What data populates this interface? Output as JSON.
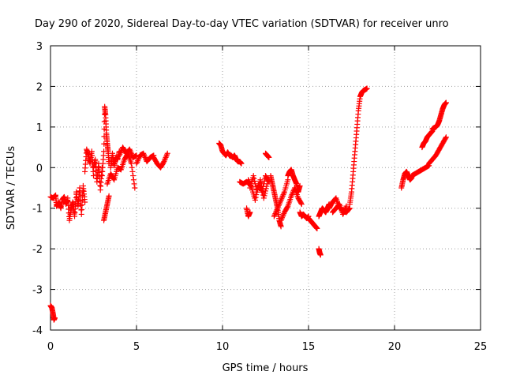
{
  "chart_data": {
    "type": "scatter",
    "title": "Day 290 of 2020, Sidereal Day-to-day VTEC variation (SDTVAR) for receiver unro",
    "xlabel": "GPS time / hours",
    "ylabel": "SDTVAR / TECUs",
    "xlim": [
      0,
      25
    ],
    "ylim": [
      -4,
      3
    ],
    "xticks": [
      "0",
      "5",
      "10",
      "15",
      "20",
      "25"
    ],
    "yticks": [
      "-4",
      "-3",
      "-2",
      "-1",
      "0",
      "1",
      "2",
      "3"
    ],
    "grid": true,
    "marker": "plus",
    "color": "#ff0000",
    "series": [
      {
        "name": "SDTVAR",
        "segments": [
          {
            "x": [
              0.0,
              0.08,
              0.15,
              0.2,
              0.25
            ],
            "y": [
              -3.4,
              -3.45,
              -3.6,
              -3.75,
              -3.7
            ]
          },
          {
            "x": [
              0.0,
              0.15,
              0.3,
              0.35,
              0.5,
              0.6,
              0.7,
              0.8,
              0.9,
              1.0
            ],
            "y": [
              -0.72,
              -0.75,
              -0.68,
              -0.95,
              -0.85,
              -1.0,
              -0.78,
              -0.72,
              -0.9,
              -0.8
            ]
          },
          {
            "x": [
              1.0,
              1.1,
              1.2,
              1.3,
              1.4,
              1.5
            ],
            "y": [
              -0.75,
              -1.3,
              -1.0,
              -0.85,
              -1.2,
              -0.65
            ]
          },
          {
            "x": [
              1.5,
              1.6,
              1.7,
              1.8,
              1.9,
              2.0
            ],
            "y": [
              -0.6,
              -0.95,
              -0.5,
              -1.15,
              -0.45,
              -0.85
            ]
          },
          {
            "x": [
              2.0,
              2.1,
              2.2,
              2.3,
              2.4,
              2.5
            ],
            "y": [
              -0.1,
              0.45,
              0.3,
              0.1,
              0.4,
              -0.2
            ]
          },
          {
            "x": [
              2.5,
              2.6,
              2.7,
              2.8,
              2.9,
              3.0
            ],
            "y": [
              0.0,
              0.2,
              -0.35,
              0.1,
              -0.55,
              0.0
            ]
          },
          {
            "x": [
              3.0,
              3.1,
              3.15,
              3.2,
              3.25,
              3.3,
              3.35,
              3.4
            ],
            "y": [
              -0.2,
              0.4,
              1.5,
              1.3,
              0.85,
              0.6,
              0.4,
              0.1
            ]
          },
          {
            "x": [
              3.1,
              3.2,
              3.3,
              3.4
            ],
            "y": [
              -1.3,
              -1.1,
              -0.9,
              -0.7
            ]
          },
          {
            "x": [
              3.5,
              3.6,
              3.7,
              3.8,
              3.9,
              4.0
            ],
            "y": [
              0.0,
              0.35,
              0.05,
              0.25,
              0.2,
              0.4
            ]
          },
          {
            "x": [
              3.3,
              3.5,
              3.7,
              3.9,
              4.1,
              4.3,
              4.5,
              4.7,
              4.9
            ],
            "y": [
              -0.4,
              -0.15,
              -0.3,
              0.0,
              -0.05,
              0.2,
              0.35,
              0.1,
              -0.5
            ]
          },
          {
            "x": [
              4.0,
              4.2,
              4.4,
              4.6,
              4.8,
              5.0
            ],
            "y": [
              0.3,
              0.5,
              0.35,
              0.45,
              0.25,
              0.3
            ]
          },
          {
            "x": [
              5.0,
              5.2,
              5.4,
              5.6,
              5.8,
              6.0
            ],
            "y": [
              0.1,
              0.3,
              0.35,
              0.15,
              0.25,
              0.3
            ]
          },
          {
            "x": [
              6.0,
              6.2,
              6.4,
              6.6,
              6.8
            ],
            "y": [
              0.25,
              0.1,
              0.0,
              0.15,
              0.35
            ]
          },
          {
            "x": [
              9.8,
              9.9,
              10.0,
              10.1,
              10.2,
              10.3,
              10.4,
              10.5
            ],
            "y": [
              0.6,
              0.55,
              0.4,
              0.35,
              0.3,
              0.38,
              0.3,
              0.28
            ]
          },
          {
            "x": [
              10.5,
              10.6,
              10.7,
              10.8,
              10.9,
              11.0,
              11.1
            ],
            "y": [
              0.3,
              0.25,
              0.3,
              0.2,
              0.15,
              0.15,
              0.1
            ]
          },
          {
            "x": [
              11.0,
              11.2,
              11.4,
              11.6
            ],
            "y": [
              -0.35,
              -0.4,
              -0.35,
              -0.4
            ]
          },
          {
            "x": [
              11.4,
              11.5,
              11.6
            ],
            "y": [
              -1.0,
              -1.2,
              -1.1
            ]
          },
          {
            "x": [
              11.5,
              11.7,
              11.9,
              12.1,
              12.3,
              12.5,
              12.7
            ],
            "y": [
              -0.3,
              -0.5,
              -0.8,
              -0.4,
              -0.6,
              -0.2,
              -0.35
            ]
          },
          {
            "x": [
              11.6,
              11.8,
              12.0,
              12.2,
              12.4,
              12.6
            ],
            "y": [
              -0.5,
              -0.2,
              -0.6,
              -0.3,
              -0.75,
              -0.4
            ]
          },
          {
            "x": [
              12.5,
              12.6,
              12.7
            ],
            "y": [
              0.35,
              0.3,
              0.25
            ]
          },
          {
            "x": [
              12.8,
              12.9,
              13.0,
              13.1,
              13.2,
              13.3,
              13.4
            ],
            "y": [
              -0.2,
              -0.4,
              -0.6,
              -0.8,
              -1.0,
              -1.3,
              -1.45
            ]
          },
          {
            "x": [
              13.0,
              13.2,
              13.4,
              13.6,
              13.8
            ],
            "y": [
              -1.2,
              -1.0,
              -0.8,
              -0.6,
              -0.3
            ]
          },
          {
            "x": [
              13.4,
              13.6,
              13.8,
              14.0,
              14.2,
              14.4,
              14.6
            ],
            "y": [
              -1.3,
              -1.1,
              -0.95,
              -0.7,
              -0.5,
              -0.75,
              -0.9
            ]
          },
          {
            "x": [
              13.8,
              13.9,
              14.0,
              14.1,
              14.2,
              14.3,
              14.4,
              14.5
            ],
            "y": [
              -0.2,
              -0.1,
              -0.05,
              -0.2,
              -0.3,
              -0.4,
              -0.6,
              -0.45
            ]
          },
          {
            "x": [
              14.5,
              14.6,
              14.7,
              14.8,
              14.9,
              15.0
            ],
            "y": [
              -1.1,
              -1.2,
              -1.15,
              -1.2,
              -1.25,
              -1.2
            ]
          },
          {
            "x": [
              15.0,
              15.1,
              15.2,
              15.3,
              15.4,
              15.5
            ],
            "y": [
              -1.25,
              -1.3,
              -1.35,
              -1.4,
              -1.45,
              -1.5
            ]
          },
          {
            "x": [
              15.6,
              15.65,
              15.7
            ],
            "y": [
              -2.0,
              -2.1,
              -2.15
            ]
          },
          {
            "x": [
              15.6,
              15.7,
              15.8,
              15.9,
              16.0,
              16.1,
              16.2
            ],
            "y": [
              -1.2,
              -1.1,
              -1.0,
              -1.05,
              -1.1,
              -1.0,
              -0.9
            ]
          },
          {
            "x": [
              16.2,
              16.4,
              16.6,
              16.8,
              17.0,
              17.2,
              17.4
            ],
            "y": [
              -1.0,
              -0.85,
              -0.75,
              -1.0,
              -1.05,
              -1.1,
              -1.0
            ]
          },
          {
            "x": [
              16.4,
              16.6,
              16.8,
              17.0,
              17.2
            ],
            "y": [
              -1.1,
              -1.0,
              -0.9,
              -1.15,
              -0.95
            ]
          },
          {
            "x": [
              17.4,
              17.5,
              17.6,
              17.7,
              17.8,
              17.9,
              18.0,
              18.1,
              18.2,
              18.3,
              18.4
            ],
            "y": [
              -0.9,
              -0.6,
              -0.1,
              0.4,
              0.9,
              1.4,
              1.75,
              1.85,
              1.9,
              1.92,
              1.95
            ]
          },
          {
            "x": [
              20.4,
              20.5,
              20.6,
              20.7,
              20.8,
              20.9,
              21.0
            ],
            "y": [
              -0.5,
              -0.3,
              -0.15,
              -0.1,
              -0.2,
              -0.3,
              -0.25
            ]
          },
          {
            "x": [
              21.0,
              21.2,
              21.4,
              21.6,
              21.8,
              22.0
            ],
            "y": [
              -0.2,
              -0.15,
              -0.1,
              -0.05,
              0.0,
              0.05
            ]
          },
          {
            "x": [
              22.0,
              22.2,
              22.4,
              22.6,
              22.8,
              23.0
            ],
            "y": [
              0.1,
              0.2,
              0.3,
              0.45,
              0.6,
              0.75
            ]
          },
          {
            "x": [
              21.6,
              21.7,
              21.8,
              21.9,
              22.0,
              22.1,
              22.2
            ],
            "y": [
              0.5,
              0.6,
              0.65,
              0.75,
              0.8,
              0.85,
              0.9
            ]
          },
          {
            "x": [
              22.2,
              22.3,
              22.4,
              22.5,
              22.6,
              22.7,
              22.8,
              22.9,
              23.0
            ],
            "y": [
              0.95,
              0.98,
              1.0,
              1.05,
              1.15,
              1.3,
              1.45,
              1.55,
              1.6
            ]
          }
        ]
      }
    ]
  }
}
